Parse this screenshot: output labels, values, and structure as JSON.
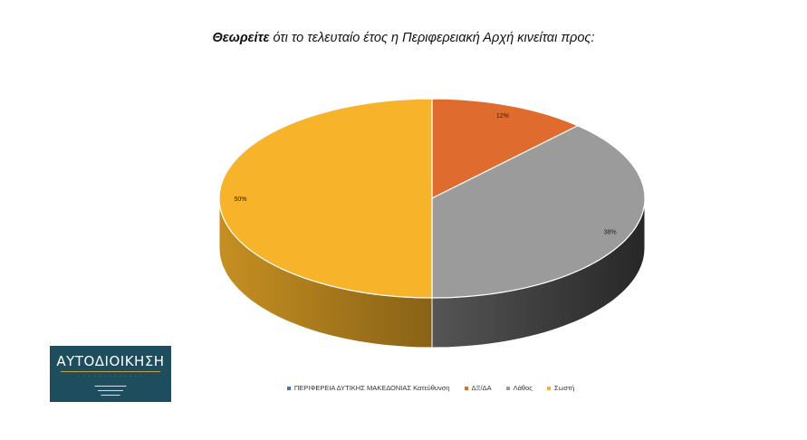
{
  "title": {
    "emphasis": "Θεωρείτε",
    "rest": " ότι το τελευταίο έτος η Περιφερειακή Αρχή κινείται προς:"
  },
  "chart_data": {
    "type": "pie",
    "title": "Θεωρείτε ότι το τελευταίο έτος η Περιφερειακή Αρχή κινείται προς:",
    "categories": [
      "ΠΕΡΙΦΕΡΕΙΑ ΔΥΤΙΚΗΣ ΜΑΚΕΔΟΝΙΑΣ Κατεύθυνση",
      "ΔΞ/ΔΑ",
      "Λάθος",
      "Σωστή"
    ],
    "values": [
      0,
      12,
      38,
      50
    ],
    "labels": [
      "",
      "12%",
      "38%",
      "50%"
    ],
    "colors": [
      "#4472c4",
      "#e06b2e",
      "#9b9b9b",
      "#f7b329"
    ],
    "legend_position": "bottom",
    "style": "3d"
  },
  "logo": {
    "word": "ΑΥΤΟΔΙΟΙΚΗΣΗ",
    "colors": {
      "background": "#1e4d5e",
      "accent": "#c8a24a"
    }
  }
}
